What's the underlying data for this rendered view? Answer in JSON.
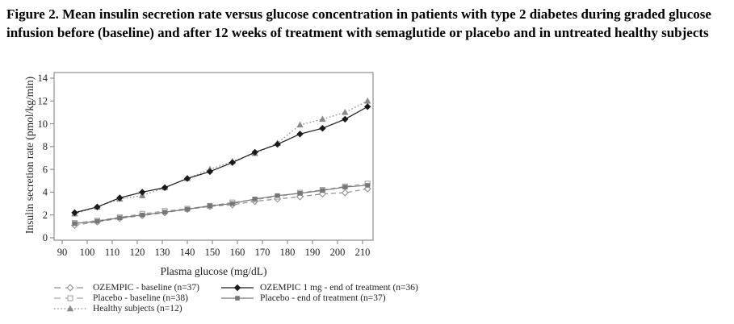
{
  "title": "Figure 2. Mean insulin secretion rate versus glucose concentration in patients with type 2 diabetes during graded glucose infusion before (baseline) and after 12 weeks of treatment with semaglutide or placebo and in untreated healthy subjects",
  "chart_data": {
    "type": "line",
    "title": "",
    "xlabel": "Plasma glucose (mg/dL)",
    "ylabel": "Insulin secretion rate (pmol/kg/min)",
    "xlim": [
      86,
      216
    ],
    "ylim": [
      0,
      14
    ],
    "x_ticks": [
      90,
      100,
      110,
      120,
      130,
      140,
      150,
      160,
      170,
      180,
      190,
      200,
      210
    ],
    "y_ticks": [
      0,
      2,
      4,
      6,
      8,
      10,
      12,
      14
    ],
    "grid": false,
    "legend_position": "below-left",
    "frame_color": "#8f8f8f",
    "text_color": "#1f1f1f",
    "x": [
      95,
      104,
      113,
      122,
      131,
      140,
      149,
      158,
      167,
      176,
      185,
      194,
      203,
      212
    ],
    "series": [
      {
        "name": "OZEMPIC - baseline (n=37)",
        "marker": "diamond-open",
        "line": "dashed",
        "color": "#8f8f8f",
        "values": [
          1.1,
          1.4,
          1.7,
          1.95,
          2.2,
          2.5,
          2.75,
          2.9,
          3.2,
          3.4,
          3.6,
          3.85,
          3.95,
          4.3
        ]
      },
      {
        "name": "Placebo - baseline (n=38)",
        "marker": "square-open",
        "line": "dashed",
        "color": "#a3a3a3",
        "values": [
          1.3,
          1.5,
          1.8,
          2.1,
          2.35,
          2.55,
          2.8,
          3.1,
          3.35,
          3.6,
          3.95,
          4.2,
          4.5,
          4.75
        ]
      },
      {
        "name": "Placebo - end of treatment (n=37)",
        "marker": "square-filled",
        "line": "solid",
        "color": "#767676",
        "values": [
          1.25,
          1.45,
          1.75,
          2.0,
          2.25,
          2.5,
          2.8,
          3.0,
          3.4,
          3.7,
          3.9,
          4.15,
          4.45,
          4.6
        ]
      },
      {
        "name": "Healthy subjects (n=12)",
        "marker": "triangle-filled",
        "line": "dotted",
        "color": "#8a8a8a",
        "values": [
          2.1,
          2.7,
          3.4,
          3.7,
          4.4,
          5.2,
          6.0,
          6.7,
          7.4,
          8.3,
          9.9,
          10.4,
          11.0,
          12.0
        ]
      },
      {
        "name": "OZEMPIC 1 mg - end of treatment (n=36)",
        "marker": "diamond-filled",
        "line": "solid",
        "color": "#1a1a1a",
        "values": [
          2.2,
          2.7,
          3.5,
          4.0,
          4.4,
          5.2,
          5.8,
          6.6,
          7.5,
          8.2,
          9.1,
          9.6,
          10.4,
          11.5
        ]
      }
    ]
  }
}
